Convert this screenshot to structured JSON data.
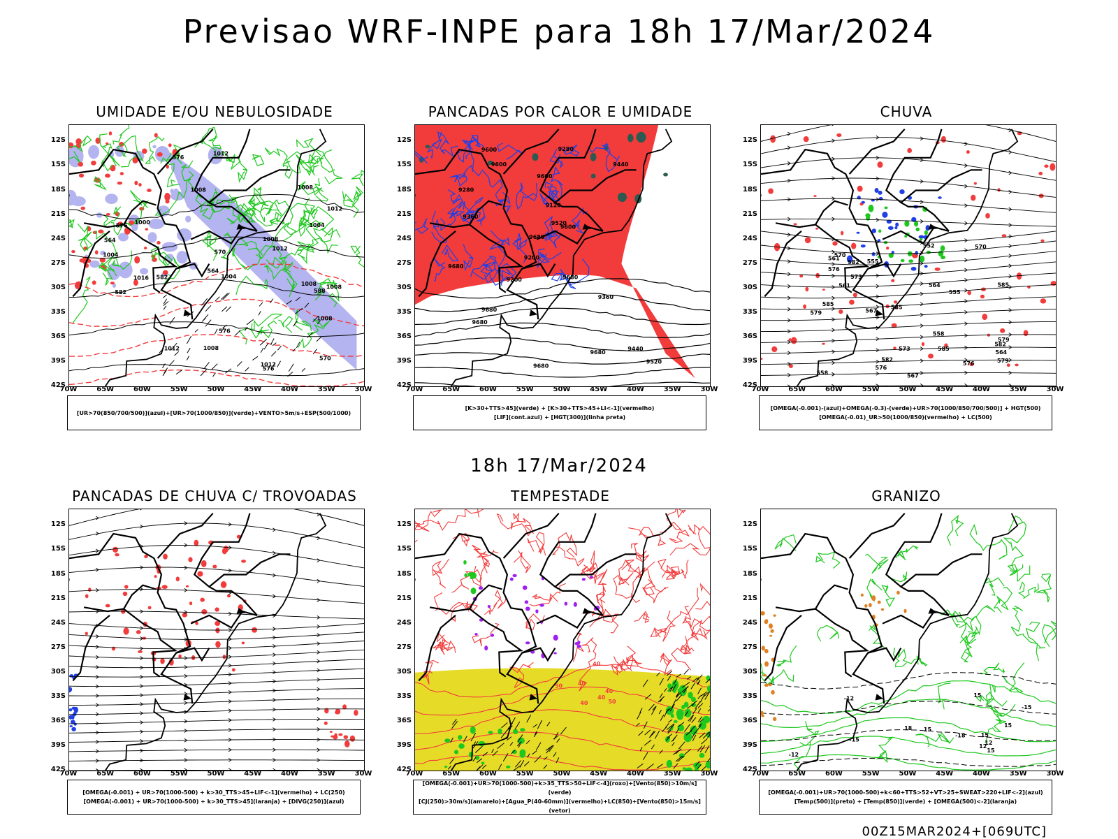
{
  "header": {
    "title": "Previsao WRF-INPE  para 18h 17/Mar/2024"
  },
  "mid_label": "18h 17/Mar/2024",
  "footer": "00Z15MAR2024+[069UTC]",
  "axes": {
    "lat": [
      "12S",
      "15S",
      "18S",
      "21S",
      "24S",
      "27S",
      "30S",
      "33S",
      "36S",
      "39S",
      "42S"
    ],
    "lon": [
      "70W",
      "65W",
      "60W",
      "55W",
      "50W",
      "45W",
      "40W",
      "35W",
      "30W"
    ]
  },
  "colors": {
    "red": "#f23c3c",
    "green": "#1fc81f",
    "blue": "#2040e6",
    "lavender": "#b4b4f0",
    "yellow": "#e6dc28",
    "darkgreen": "#2d5a50",
    "purple": "#a020f0",
    "orange": "#e08020"
  },
  "panels": [
    {
      "title": "UMIDADE E/OU NEBULOSIDADE",
      "legend": [
        "[UR>70(850/700/500)](azul)+[UR>70(1000/850)](verde)+VENTO>5m/s+ESP(500/1000)"
      ],
      "labels": [
        "1008",
        "1008",
        "1008",
        "1004",
        "1008",
        "1012",
        "1012",
        "1016",
        "1004",
        "1008",
        "1012",
        "1008",
        "1012",
        "576",
        "576",
        "576",
        "582",
        "576",
        "570",
        "564",
        "564",
        "570",
        "588",
        "582",
        "1000",
        "1008",
        "1004",
        "1012"
      ]
    },
    {
      "title": "PANCADAS POR CALOR E UMIDADE",
      "legend": [
        "[K>30+TTS>45](verde) + [K>30+TTS>45+LI<-1](vermelho)",
        "[LIF](cont.azul) + [HGT(300)](linha preta)"
      ],
      "labels": [
        "9680",
        "9680",
        "9680",
        "9680",
        "9600",
        "9600",
        "9680",
        "9680",
        "9680",
        "9600",
        "9600",
        "9520",
        "9440",
        "9360",
        "9280",
        "9200",
        "9120",
        "9520",
        "9440",
        "9360",
        "9280",
        "9200"
      ]
    },
    {
      "title": "CHUVA",
      "legend": [
        "[OMEGA(-0.001)-(azul)+OMEGA(-0.3)-(verde)+UR>70(1000/850/700/500)] + HGT(500)",
        "[OMEGA(-0.01)_UR>50(1000/850)(vermelho) + LC(500)"
      ],
      "labels": [
        "585",
        "585",
        "585",
        "582",
        "579",
        "576",
        "573",
        "570",
        "567",
        "564",
        "561",
        "558",
        "555",
        "552",
        "585",
        "582",
        "579",
        "576",
        "573",
        "570",
        "567",
        "564",
        "561",
        "558",
        "555",
        "576",
        "579",
        "582"
      ]
    },
    {
      "title": "PANCADAS DE CHUVA C/ TROVOADAS",
      "legend": [
        "[OMEGA(-0.001) + UR>70(1000-500) + k>30_TTS>45+LIF<-1](vermelho) + LC(250)",
        "[OMEGA(-0.001) + UR>70(1000-500) + k>30_TTS>45](laranja) + [DIVG(250)](azul)"
      ],
      "labels": []
    },
    {
      "title": "TEMPESTADE",
      "legend": [
        "[OMEGA(-0.001)+UR>70(1000-500)+k>35_TTS>50+LIF<-4](roxo)+[Vento(850)>10m/s](verde)",
        "[CJ(250)>30m/s](amarelo)+[Agua_P(40-60mm)](vermelho)+LC(850)+[Vento(850)>15m/s](vetor)"
      ],
      "labels": [
        "40",
        "40",
        "50",
        "40",
        "50",
        "40",
        "40"
      ]
    },
    {
      "title": "GRANIZO",
      "legend": [
        "[OMEGA(-0.001)+UR>70(1000-500)+k<60+TTS>52+VT>25+SWEAT>220+LIF<-2](azul)",
        "[Temp(500)](preto) + [Temp(850)](verde) + [OMEGA(500)<-2](laranja)"
      ],
      "labels": [
        "15",
        "-12",
        "-12",
        "-15",
        "-15",
        "-18",
        "18",
        "15",
        "15",
        "12",
        "12",
        "15",
        "15"
      ]
    }
  ]
}
